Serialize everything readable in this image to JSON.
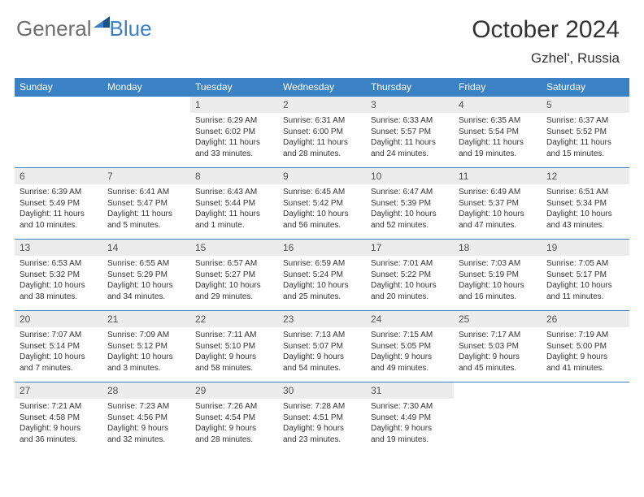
{
  "brand": {
    "part1": "General",
    "part2": "Blue"
  },
  "title": "October 2024",
  "location": "Gzhel', Russia",
  "colors": {
    "header_bg": "#3b82c4",
    "header_fg": "#ffffff",
    "daynum_bg": "#ececec",
    "accent": "#3b7fc4",
    "gray_text": "#6d6d6d",
    "body_text": "#333333"
  },
  "weekday_labels": [
    "Sunday",
    "Monday",
    "Tuesday",
    "Wednesday",
    "Thursday",
    "Friday",
    "Saturday"
  ],
  "blank_leading": 2,
  "blank_trailing": 2,
  "days": [
    {
      "n": "1",
      "sunrise": "Sunrise: 6:29 AM",
      "sunset": "Sunset: 6:02 PM",
      "dl1": "Daylight: 11 hours",
      "dl2": "and 33 minutes."
    },
    {
      "n": "2",
      "sunrise": "Sunrise: 6:31 AM",
      "sunset": "Sunset: 6:00 PM",
      "dl1": "Daylight: 11 hours",
      "dl2": "and 28 minutes."
    },
    {
      "n": "3",
      "sunrise": "Sunrise: 6:33 AM",
      "sunset": "Sunset: 5:57 PM",
      "dl1": "Daylight: 11 hours",
      "dl2": "and 24 minutes."
    },
    {
      "n": "4",
      "sunrise": "Sunrise: 6:35 AM",
      "sunset": "Sunset: 5:54 PM",
      "dl1": "Daylight: 11 hours",
      "dl2": "and 19 minutes."
    },
    {
      "n": "5",
      "sunrise": "Sunrise: 6:37 AM",
      "sunset": "Sunset: 5:52 PM",
      "dl1": "Daylight: 11 hours",
      "dl2": "and 15 minutes."
    },
    {
      "n": "6",
      "sunrise": "Sunrise: 6:39 AM",
      "sunset": "Sunset: 5:49 PM",
      "dl1": "Daylight: 11 hours",
      "dl2": "and 10 minutes."
    },
    {
      "n": "7",
      "sunrise": "Sunrise: 6:41 AM",
      "sunset": "Sunset: 5:47 PM",
      "dl1": "Daylight: 11 hours",
      "dl2": "and 5 minutes."
    },
    {
      "n": "8",
      "sunrise": "Sunrise: 6:43 AM",
      "sunset": "Sunset: 5:44 PM",
      "dl1": "Daylight: 11 hours",
      "dl2": "and 1 minute."
    },
    {
      "n": "9",
      "sunrise": "Sunrise: 6:45 AM",
      "sunset": "Sunset: 5:42 PM",
      "dl1": "Daylight: 10 hours",
      "dl2": "and 56 minutes."
    },
    {
      "n": "10",
      "sunrise": "Sunrise: 6:47 AM",
      "sunset": "Sunset: 5:39 PM",
      "dl1": "Daylight: 10 hours",
      "dl2": "and 52 minutes."
    },
    {
      "n": "11",
      "sunrise": "Sunrise: 6:49 AM",
      "sunset": "Sunset: 5:37 PM",
      "dl1": "Daylight: 10 hours",
      "dl2": "and 47 minutes."
    },
    {
      "n": "12",
      "sunrise": "Sunrise: 6:51 AM",
      "sunset": "Sunset: 5:34 PM",
      "dl1": "Daylight: 10 hours",
      "dl2": "and 43 minutes."
    },
    {
      "n": "13",
      "sunrise": "Sunrise: 6:53 AM",
      "sunset": "Sunset: 5:32 PM",
      "dl1": "Daylight: 10 hours",
      "dl2": "and 38 minutes."
    },
    {
      "n": "14",
      "sunrise": "Sunrise: 6:55 AM",
      "sunset": "Sunset: 5:29 PM",
      "dl1": "Daylight: 10 hours",
      "dl2": "and 34 minutes."
    },
    {
      "n": "15",
      "sunrise": "Sunrise: 6:57 AM",
      "sunset": "Sunset: 5:27 PM",
      "dl1": "Daylight: 10 hours",
      "dl2": "and 29 minutes."
    },
    {
      "n": "16",
      "sunrise": "Sunrise: 6:59 AM",
      "sunset": "Sunset: 5:24 PM",
      "dl1": "Daylight: 10 hours",
      "dl2": "and 25 minutes."
    },
    {
      "n": "17",
      "sunrise": "Sunrise: 7:01 AM",
      "sunset": "Sunset: 5:22 PM",
      "dl1": "Daylight: 10 hours",
      "dl2": "and 20 minutes."
    },
    {
      "n": "18",
      "sunrise": "Sunrise: 7:03 AM",
      "sunset": "Sunset: 5:19 PM",
      "dl1": "Daylight: 10 hours",
      "dl2": "and 16 minutes."
    },
    {
      "n": "19",
      "sunrise": "Sunrise: 7:05 AM",
      "sunset": "Sunset: 5:17 PM",
      "dl1": "Daylight: 10 hours",
      "dl2": "and 11 minutes."
    },
    {
      "n": "20",
      "sunrise": "Sunrise: 7:07 AM",
      "sunset": "Sunset: 5:14 PM",
      "dl1": "Daylight: 10 hours",
      "dl2": "and 7 minutes."
    },
    {
      "n": "21",
      "sunrise": "Sunrise: 7:09 AM",
      "sunset": "Sunset: 5:12 PM",
      "dl1": "Daylight: 10 hours",
      "dl2": "and 3 minutes."
    },
    {
      "n": "22",
      "sunrise": "Sunrise: 7:11 AM",
      "sunset": "Sunset: 5:10 PM",
      "dl1": "Daylight: 9 hours",
      "dl2": "and 58 minutes."
    },
    {
      "n": "23",
      "sunrise": "Sunrise: 7:13 AM",
      "sunset": "Sunset: 5:07 PM",
      "dl1": "Daylight: 9 hours",
      "dl2": "and 54 minutes."
    },
    {
      "n": "24",
      "sunrise": "Sunrise: 7:15 AM",
      "sunset": "Sunset: 5:05 PM",
      "dl1": "Daylight: 9 hours",
      "dl2": "and 49 minutes."
    },
    {
      "n": "25",
      "sunrise": "Sunrise: 7:17 AM",
      "sunset": "Sunset: 5:03 PM",
      "dl1": "Daylight: 9 hours",
      "dl2": "and 45 minutes."
    },
    {
      "n": "26",
      "sunrise": "Sunrise: 7:19 AM",
      "sunset": "Sunset: 5:00 PM",
      "dl1": "Daylight: 9 hours",
      "dl2": "and 41 minutes."
    },
    {
      "n": "27",
      "sunrise": "Sunrise: 7:21 AM",
      "sunset": "Sunset: 4:58 PM",
      "dl1": "Daylight: 9 hours",
      "dl2": "and 36 minutes."
    },
    {
      "n": "28",
      "sunrise": "Sunrise: 7:23 AM",
      "sunset": "Sunset: 4:56 PM",
      "dl1": "Daylight: 9 hours",
      "dl2": "and 32 minutes."
    },
    {
      "n": "29",
      "sunrise": "Sunrise: 7:26 AM",
      "sunset": "Sunset: 4:54 PM",
      "dl1": "Daylight: 9 hours",
      "dl2": "and 28 minutes."
    },
    {
      "n": "30",
      "sunrise": "Sunrise: 7:28 AM",
      "sunset": "Sunset: 4:51 PM",
      "dl1": "Daylight: 9 hours",
      "dl2": "and 23 minutes."
    },
    {
      "n": "31",
      "sunrise": "Sunrise: 7:30 AM",
      "sunset": "Sunset: 4:49 PM",
      "dl1": "Daylight: 9 hours",
      "dl2": "and 19 minutes."
    }
  ]
}
